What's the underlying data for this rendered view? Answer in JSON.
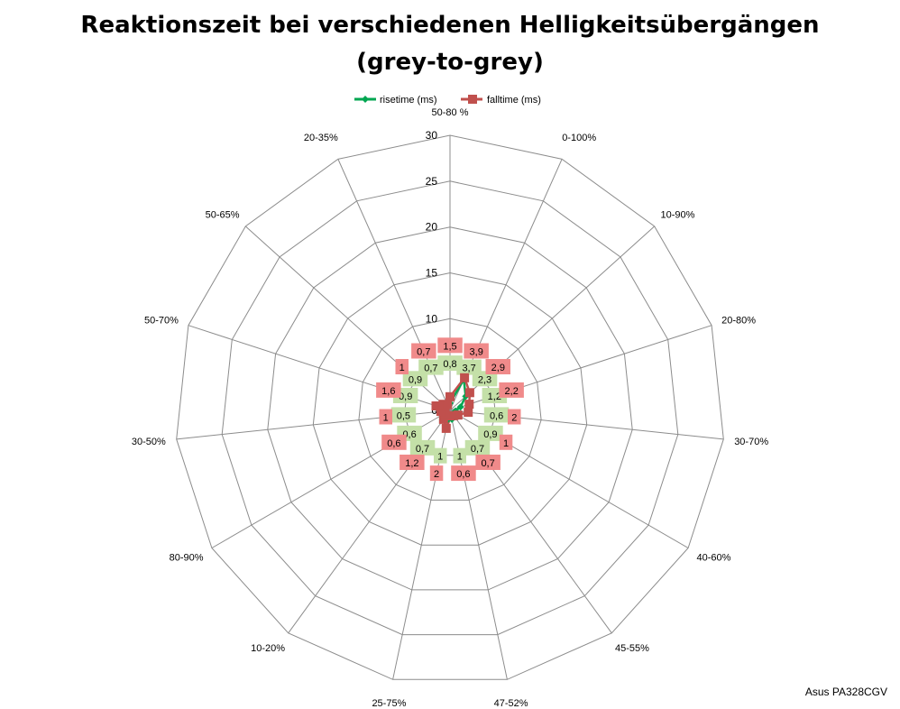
{
  "footer_text": "Asus PA328CGV",
  "colors": {
    "rise": "#00a651",
    "fall": "#c0504d",
    "rise_label_bg": "#c4e0a8",
    "fall_label_bg": "#f08a8a",
    "grid": "#8c8c8c"
  },
  "chart_data": {
    "type": "radar",
    "title_line1": "Reaktionszeit bei verschiedenen Helligkeitsübergängen",
    "title_line2": "(grey-to-grey)",
    "categories": [
      "50-80 %",
      "0-100%",
      "10-90%",
      "20-80%",
      "30-70%",
      "40-60%",
      "45-55%",
      "47-52%",
      "25-75%",
      "10-20%",
      "80-90%",
      "30-50%",
      "50-70%",
      "50-65%",
      "20-35%"
    ],
    "r_ticks": [
      0,
      5,
      10,
      15,
      20,
      25,
      30
    ],
    "rlim": [
      0,
      30
    ],
    "grid": true,
    "legend_position": "top",
    "series": [
      {
        "name": "risetime (ms)",
        "color": "#00a651",
        "marker": "diamond",
        "values": [
          0.8,
          3.7,
          2.3,
          1.2,
          0.6,
          0.9,
          0.7,
          1,
          1,
          0.7,
          0.6,
          0.5,
          0.9,
          0.9,
          0.7
        ]
      },
      {
        "name": "falltime (ms)",
        "color": "#c0504d",
        "marker": "square",
        "values": [
          1.5,
          3.9,
          2.9,
          2.2,
          2,
          1,
          0.7,
          0.6,
          2,
          1.2,
          0.6,
          1,
          1.6,
          1,
          0.7
        ]
      }
    ]
  }
}
